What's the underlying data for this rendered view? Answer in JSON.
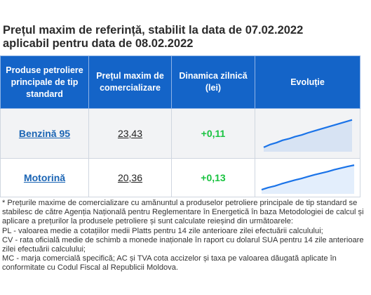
{
  "title_line1": "Prețul maxim de referință, stabilit la data de 07.02.2022",
  "title_line2": "aplicabil pentru data de 08.02.2022",
  "table": {
    "headers": [
      "Produse petroliere principale de tip standard",
      "Prețul maxim de comercializare",
      "Dinamica zilnică (lei)",
      "Evoluție"
    ],
    "rows": [
      {
        "product": "Benzină 95",
        "price": "23,43",
        "change": "+0,11",
        "trend": [
          0.05,
          0.14,
          0.2,
          0.28,
          0.33,
          0.4,
          0.45,
          0.52,
          0.58,
          0.64,
          0.7,
          0.76,
          0.82,
          0.88,
          0.94
        ]
      },
      {
        "product": "Motorină",
        "price": "20,36",
        "change": "+0,13",
        "trend": [
          0.05,
          0.13,
          0.19,
          0.27,
          0.34,
          0.41,
          0.47,
          0.54,
          0.61,
          0.67,
          0.73,
          0.8,
          0.86,
          0.92,
          0.97
        ]
      }
    ]
  },
  "colors": {
    "header_bg": "#1464c8",
    "trend_line": "#1a73e8",
    "positive": "#19c340",
    "link": "#1a64b4"
  },
  "footnote": [
    "* Prețurile maxime de comercializare cu amănuntul a produselor petroliere principale de tip standard se stabilesc de către Agenția Națională pentru Reglementare în Energetică în baza Metodologiei de calcul și aplicare a prețurilor la produsele petroliere și sunt calculate reieșind din următoarele:",
    "PL - valoarea medie a cotațiilor medii Platts pentru 14 zile anterioare zilei efectuării calculului;",
    "CV - rata oficială medie de schimb a monede inaționale în raport cu dolarul SUA pentru 14 zile anterioare zilei efectuării calculului;",
    "MC - marja comercială specifică; AC și TVA cota accizelor și taxa pe valoarea dăugată aplicate în conformitate cu Codul Fiscal al Republicii Moldova."
  ]
}
